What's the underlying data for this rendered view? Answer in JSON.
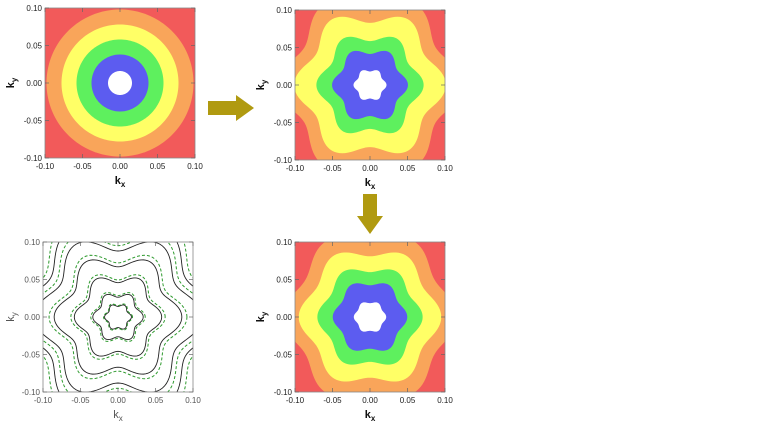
{
  "chart_data": [
    {
      "id": "tl",
      "type": "contour",
      "shape": "circle",
      "xlabel": "k_x",
      "ylabel": "k_y",
      "xlim": [
        -0.1,
        0.1
      ],
      "ylim": [
        -0.1,
        0.1
      ],
      "xticks": [
        "-0.10",
        "-0.05",
        "0.00",
        "0.05",
        "0.10"
      ],
      "yticks": [
        "0.10",
        "0.05",
        "0.00",
        "-0.05",
        "-0.10"
      ],
      "hexagonal_warp": 0.0,
      "levels": [
        {
          "radius": 1.5,
          "color": "#f25a5a"
        },
        {
          "radius": 0.098,
          "color": "#f9a55a"
        },
        {
          "radius": 0.078,
          "color": "#ffff66"
        },
        {
          "radius": 0.058,
          "color": "#5ef05e"
        },
        {
          "radius": 0.038,
          "color": "#5c5cf0"
        },
        {
          "radius": 0.016,
          "color": "#ffffff"
        }
      ]
    },
    {
      "id": "tr",
      "type": "contour",
      "shape": "hexagonal",
      "xlabel": "k_x",
      "ylabel": "k_y",
      "xlim": [
        -0.1,
        0.1
      ],
      "ylim": [
        -0.1,
        0.1
      ],
      "xticks": [
        "-0.10",
        "-0.05",
        "0.00",
        "0.05",
        "0.10"
      ],
      "yticks": [
        "0.10",
        "0.05",
        "0.00",
        "-0.05",
        "-0.10"
      ],
      "hexagonal_warp": 0.1,
      "levels": [
        {
          "radius": 1.5,
          "color": "#f25a5a"
        },
        {
          "radius": 0.112,
          "color": "#f9a55a"
        },
        {
          "radius": 0.092,
          "color": "#ffff66"
        },
        {
          "radius": 0.065,
          "color": "#5ef05e"
        },
        {
          "radius": 0.046,
          "color": "#5c5cf0"
        },
        {
          "radius": 0.02,
          "color": "#ffffff"
        }
      ]
    },
    {
      "id": "bl",
      "type": "contour-lines",
      "shape": "hexagonal",
      "xlabel": "k_x",
      "ylabel": "k_y",
      "xlim": [
        -0.1,
        0.1
      ],
      "ylim": [
        -0.1,
        0.1
      ],
      "xticks": [
        "-0.10",
        "-0.05",
        "0.00",
        "0.05",
        "0.10"
      ],
      "yticks": [
        "0.10",
        "0.05",
        "0.00",
        "-0.05",
        "-0.10"
      ],
      "hexagonal_warp": 0.12,
      "line_colors": {
        "solid": "#222222",
        "dashed": "#2e9a2e"
      },
      "levels": [
        {
          "radius": 0.016
        },
        {
          "radius": 0.03
        },
        {
          "radius": 0.052
        },
        {
          "radius": 0.076
        },
        {
          "radius": 0.1
        },
        {
          "radius": 0.118
        }
      ]
    },
    {
      "id": "br",
      "type": "contour",
      "shape": "hexagonal",
      "xlabel": "k_x",
      "ylabel": "k_y",
      "xlim": [
        -0.1,
        0.1
      ],
      "ylim": [
        -0.1,
        0.1
      ],
      "xticks": [
        "-0.10",
        "-0.05",
        "0.00",
        "0.05",
        "0.10"
      ],
      "yticks": [
        "0.10",
        "0.05",
        "0.00",
        "-0.05",
        "-0.10"
      ],
      "hexagonal_warp": 0.08,
      "levels": [
        {
          "radius": 1.5,
          "color": "#f25a5a"
        },
        {
          "radius": 0.108,
          "color": "#f9a55a"
        },
        {
          "radius": 0.088,
          "color": "#ffff66"
        },
        {
          "radius": 0.065,
          "color": "#5ef05e"
        },
        {
          "radius": 0.046,
          "color": "#5c5cf0"
        },
        {
          "radius": 0.02,
          "color": "#ffffff"
        }
      ]
    }
  ],
  "arrows": {
    "color": "#b09a10"
  }
}
